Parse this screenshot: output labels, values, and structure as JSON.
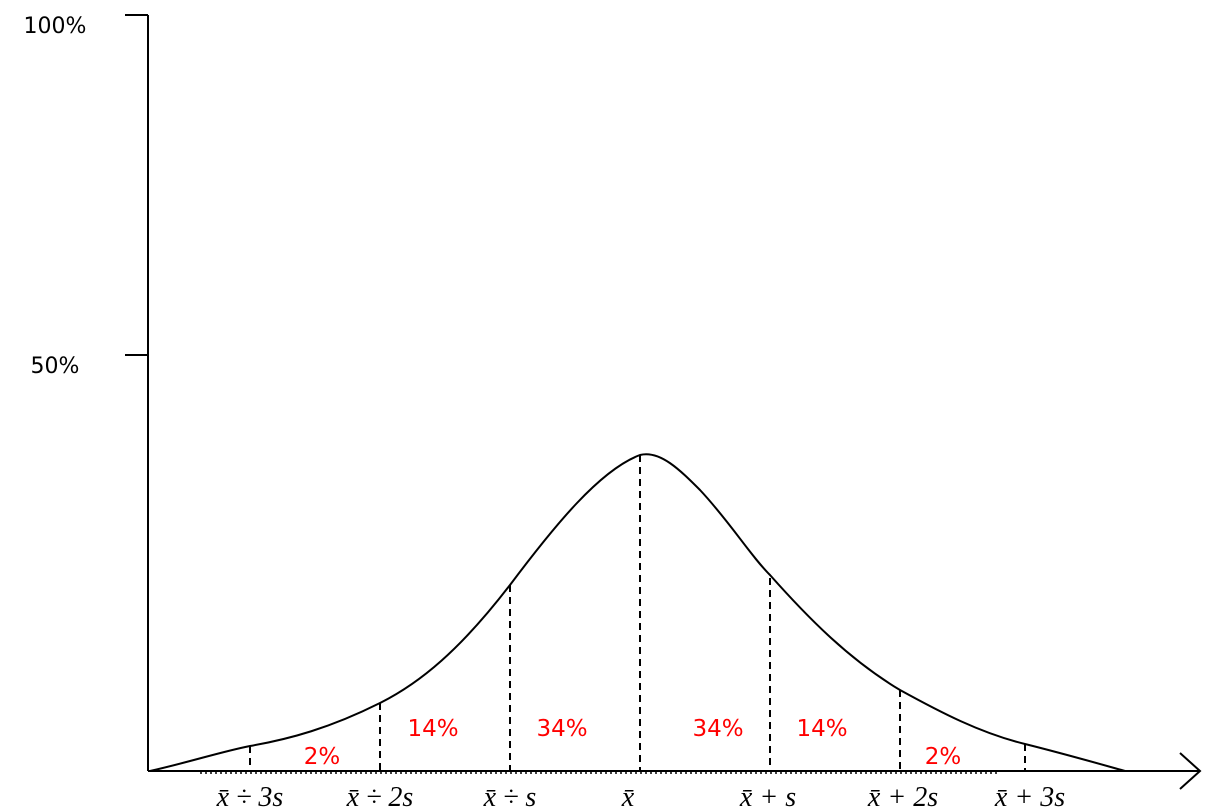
{
  "y_axis": {
    "ticks": [
      "100%",
      "50%"
    ]
  },
  "x_axis": {
    "labels": [
      "x̄ ÷ 3s",
      "x̄ ÷ 2s",
      "x̄ ÷ s",
      "x̄",
      "x̄ + s",
      "x̄ + 2s",
      "x̄ + 3s"
    ]
  },
  "regions": {
    "labels": [
      "2%",
      "14%",
      "34%",
      "34%",
      "14%",
      "2%"
    ]
  }
}
